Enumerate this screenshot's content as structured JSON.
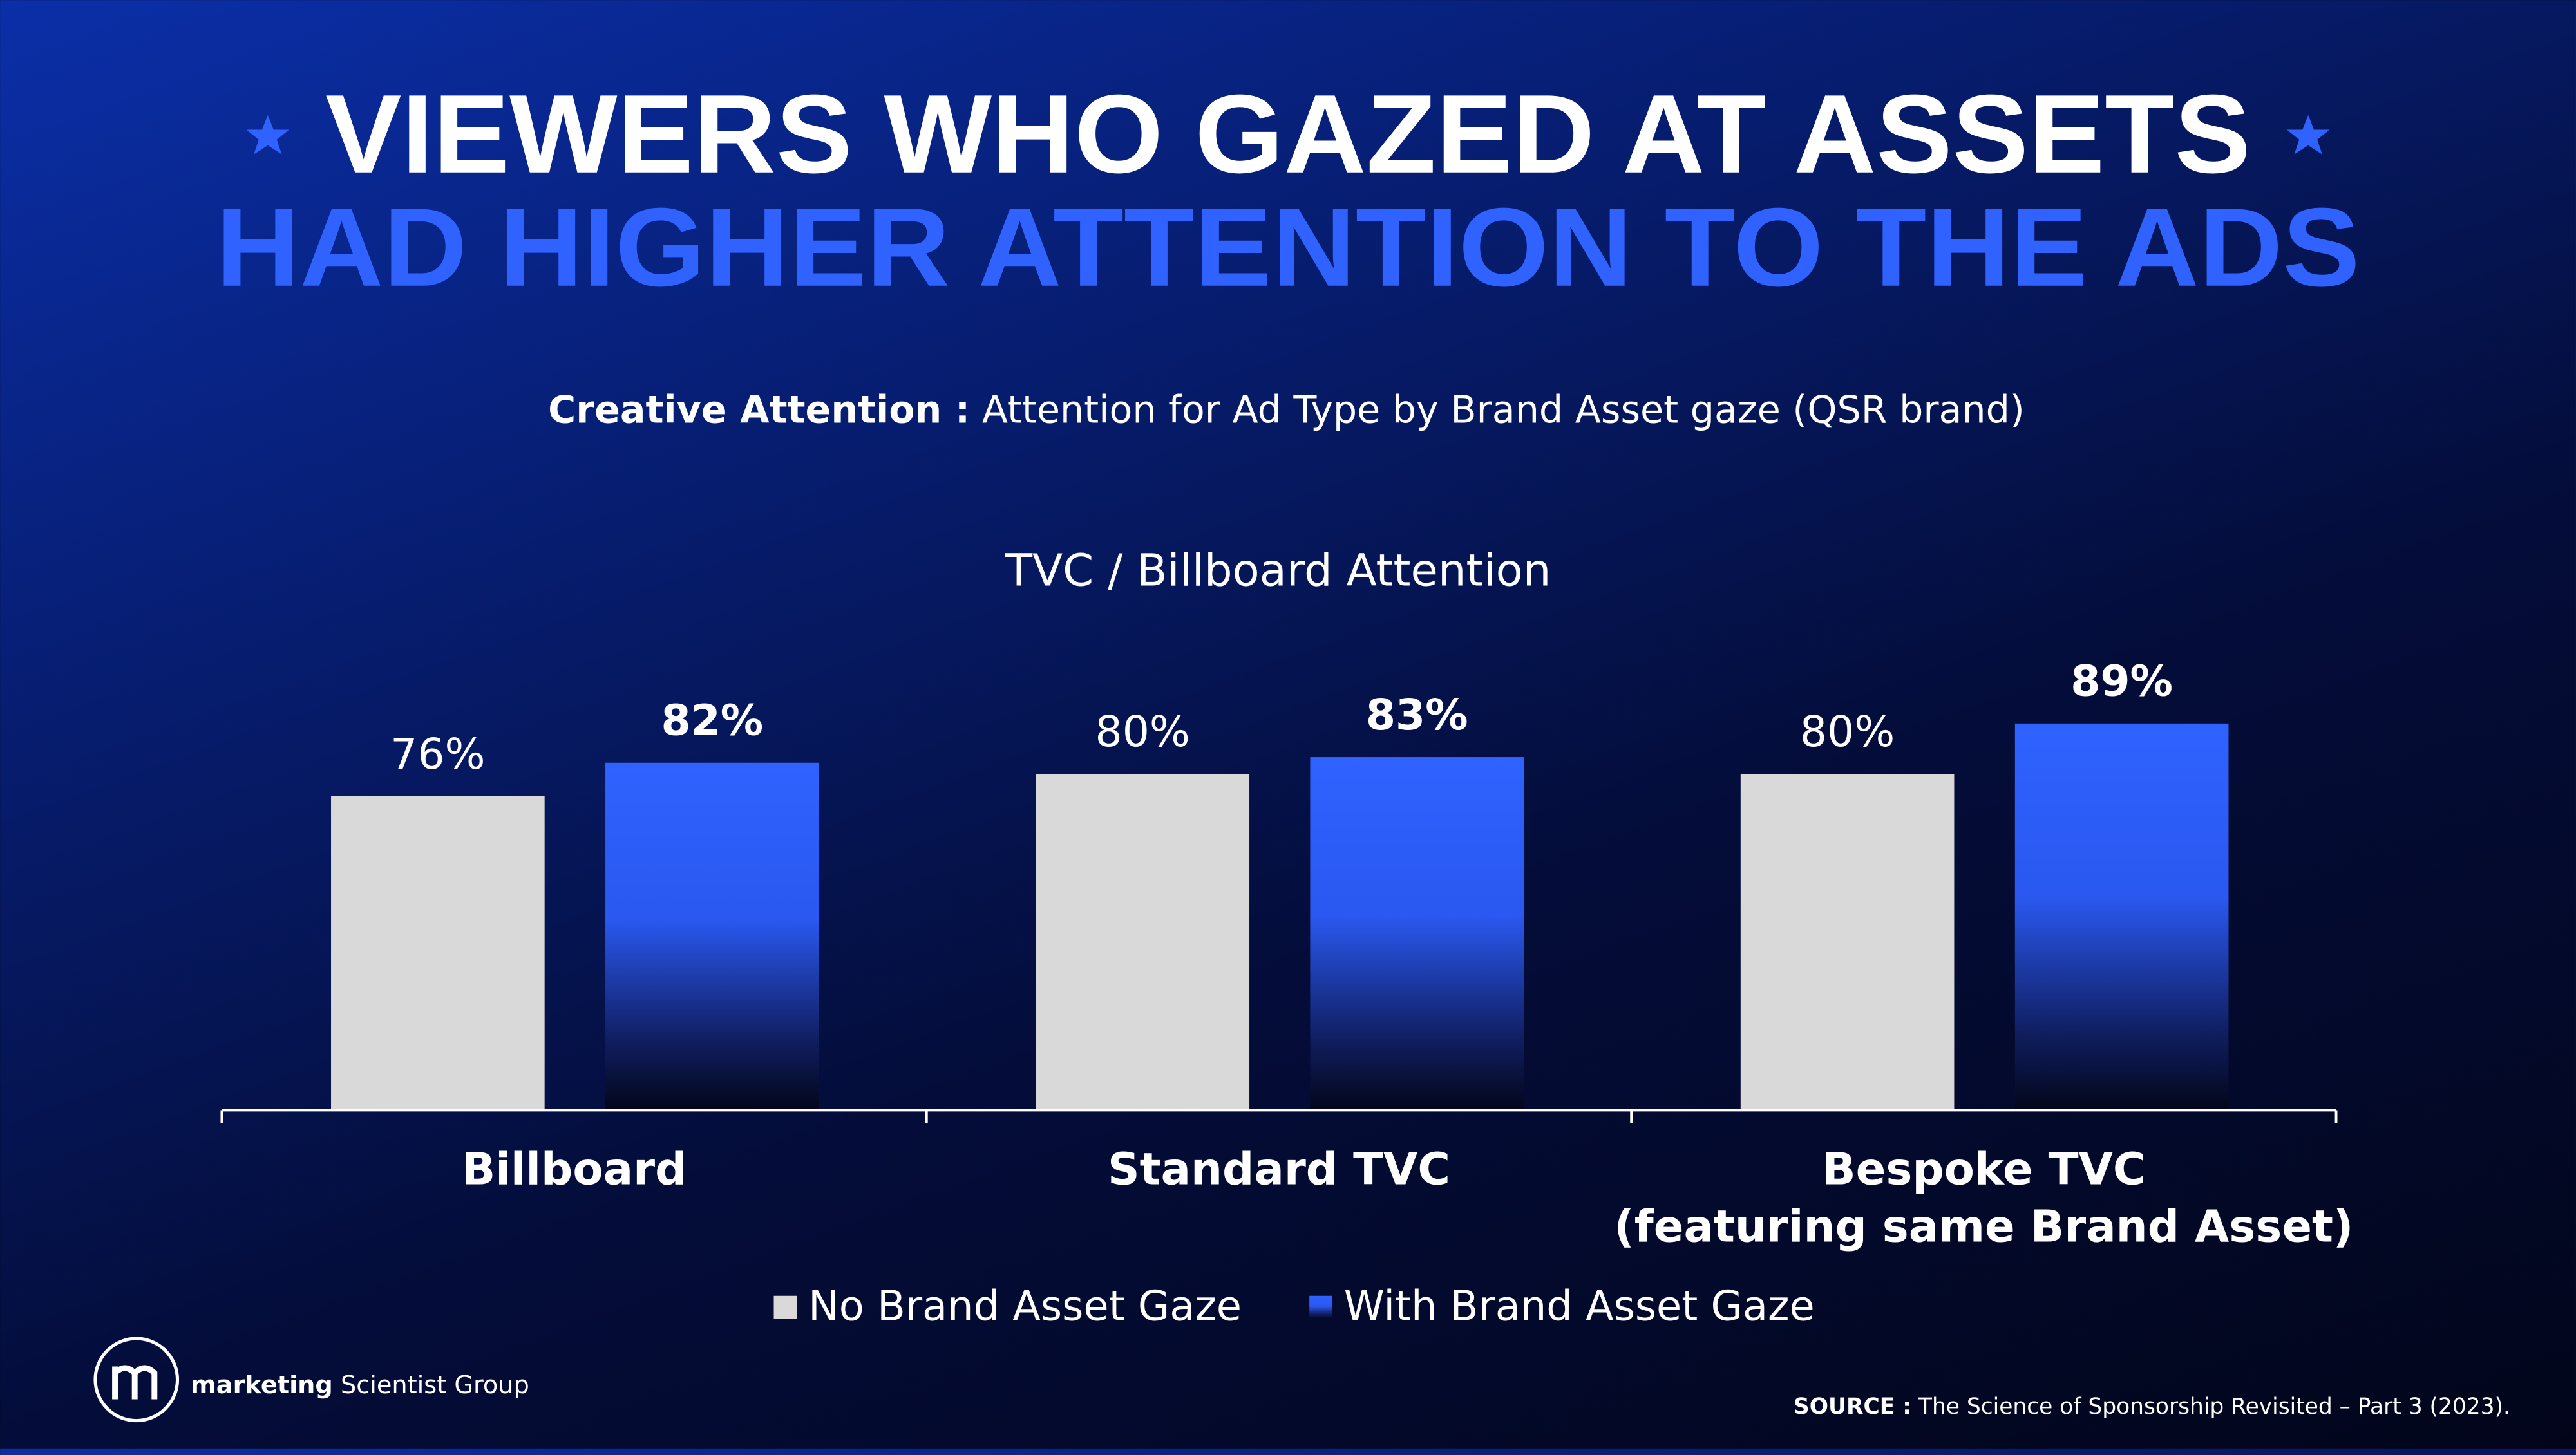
{
  "chart_data": {
    "type": "bar",
    "title_line1": "VIEWERS WHO GAZED AT ASSETS",
    "title_line2": "HAD HIGHER ATTENTION TO THE ADS",
    "subtitle_label": "Creative Attention :",
    "subtitle": " Attention for Ad Type by Brand Asset gaze (QSR brand)",
    "chart_title": "TVC / Billboard Attention",
    "categories": [
      "Billboard",
      "Standard TVC",
      "Bespoke TVC\n(featuring same Brand Asset)"
    ],
    "series": [
      {
        "name": "No Brand Asset Gaze",
        "color": "#d9d9d9",
        "values": [
          76,
          80,
          80
        ],
        "value_labels": [
          "76%",
          "80%",
          "80%"
        ]
      },
      {
        "name": "With Brand Asset Gaze",
        "color": "#2f62ff",
        "values": [
          82,
          83,
          89
        ],
        "value_labels": [
          "82%",
          "83%",
          "89%"
        ]
      }
    ],
    "ylim": [
      20,
      100
    ],
    "logo": {
      "bold": "marketing",
      "text": " Scientist Group"
    },
    "source_label": "SOURCE :",
    "source": " The Science of Sponsorship Revisited – Part 3 (2023)."
  }
}
